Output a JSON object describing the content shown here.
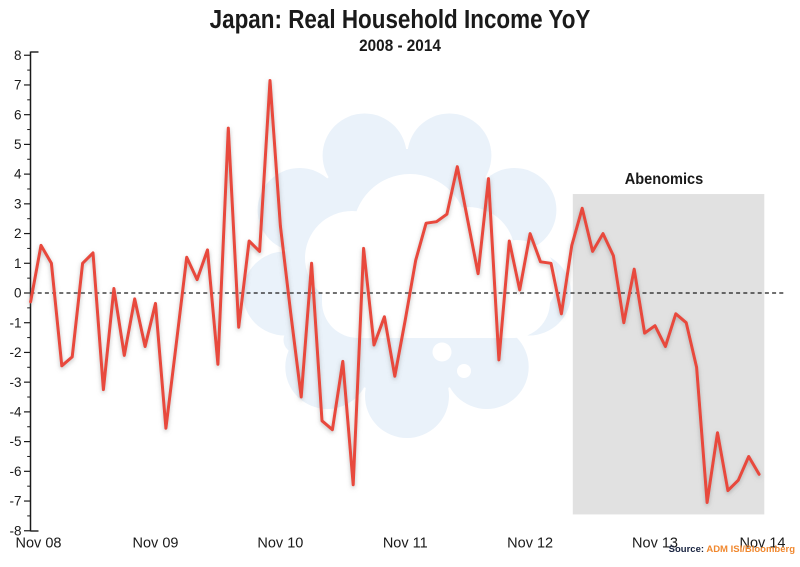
{
  "header": {
    "title": "Japan: Real Household Income YoY",
    "subtitle": "2008 - 2014"
  },
  "annotation": {
    "label": "Abenomics"
  },
  "source": {
    "label": "Source:",
    "value": "ADM ISI/Bloomberg"
  },
  "colors": {
    "line": "#E8483C",
    "shade": "#E1E1E1",
    "watermark": "#EAF2FA",
    "axis": "#1A1A1A",
    "text": "#1A1A1A",
    "source_label": "#16213E",
    "source_value": "#F0882F"
  },
  "chart_data": {
    "type": "line",
    "title": "Japan: Real Household Income YoY",
    "subtitle": "2008 - 2014",
    "xlabel": "",
    "ylabel": "",
    "ylim": [
      -8,
      8
    ],
    "y_tick_step": 1,
    "y_minor_tick_step": 0.5,
    "grid": false,
    "legend": false,
    "zero_line": "dashed",
    "y_tick_labels": [
      "8",
      "7",
      "6",
      "5",
      "4",
      "3",
      "2",
      "1",
      "0",
      "-1",
      "-2",
      "-3",
      "-4",
      "-5",
      "-6",
      "-7",
      "-8"
    ],
    "x_tick_labels": [
      "Nov 08",
      "Nov 09",
      "Nov 10",
      "Nov 11",
      "Nov 12",
      "Nov 13",
      "Nov 14"
    ],
    "x_tick_positions": [
      0,
      12,
      24,
      36,
      48,
      60,
      72
    ],
    "x": [
      "Nov-08",
      "Dec-08",
      "Jan-09",
      "Feb-09",
      "Mar-09",
      "Apr-09",
      "May-09",
      "Jun-09",
      "Jul-09",
      "Aug-09",
      "Sep-09",
      "Oct-09",
      "Nov-09",
      "Dec-09",
      "Jan-10",
      "Feb-10",
      "Mar-10",
      "Apr-10",
      "May-10",
      "Jun-10",
      "Jul-10",
      "Aug-10",
      "Sep-10",
      "Oct-10",
      "Nov-10",
      "Dec-10",
      "Jan-11",
      "Feb-11",
      "Mar-11",
      "Apr-11",
      "May-11",
      "Jun-11",
      "Jul-11",
      "Aug-11",
      "Sep-11",
      "Oct-11",
      "Nov-11",
      "Dec-11",
      "Jan-12",
      "Feb-12",
      "Mar-12",
      "Apr-12",
      "May-12",
      "Jun-12",
      "Jul-12",
      "Aug-12",
      "Sep-12",
      "Oct-12",
      "Nov-12",
      "Dec-12",
      "Jan-13",
      "Feb-13",
      "Mar-13",
      "Apr-13",
      "May-13",
      "Jun-13",
      "Jul-13",
      "Aug-13",
      "Sep-13",
      "Oct-13",
      "Nov-13",
      "Dec-13",
      "Jan-14",
      "Feb-14",
      "Mar-14",
      "Apr-14",
      "May-14",
      "Jun-14",
      "Jul-14",
      "Aug-14",
      "Sep-14"
    ],
    "series": [
      {
        "name": "Real household income YoY (%)",
        "values": [
          -0.3,
          1.6,
          1.0,
          -2.45,
          -2.15,
          1.0,
          1.35,
          -3.25,
          0.15,
          -2.1,
          -0.2,
          -1.8,
          -0.35,
          -4.55,
          -1.7,
          1.2,
          0.45,
          1.45,
          -2.4,
          5.55,
          -1.15,
          1.75,
          1.4,
          7.15,
          2.25,
          -0.7,
          -3.5,
          1.0,
          -4.3,
          -4.6,
          -2.3,
          -6.45,
          1.5,
          -1.75,
          -0.8,
          -2.8,
          -0.9,
          1.1,
          2.35,
          2.4,
          2.65,
          4.25,
          2.45,
          0.65,
          3.85,
          -2.25,
          1.75,
          0.1,
          2.0,
          1.05,
          1.0,
          -0.7,
          1.6,
          2.85,
          1.4,
          2.0,
          1.25,
          -1.0,
          0.8,
          -1.35,
          -1.1,
          -1.8,
          -0.7,
          -1.0,
          -2.5,
          -7.05,
          -4.7,
          -6.65,
          -6.3,
          -5.5,
          -6.1
        ]
      }
    ],
    "shaded_region": {
      "label": "Abenomics",
      "from": "Mar-13",
      "to": "Oct-14",
      "from_index": 52.1,
      "to_index": 70.5,
      "top_value": 3.33,
      "bottom_value": -7.45
    }
  }
}
